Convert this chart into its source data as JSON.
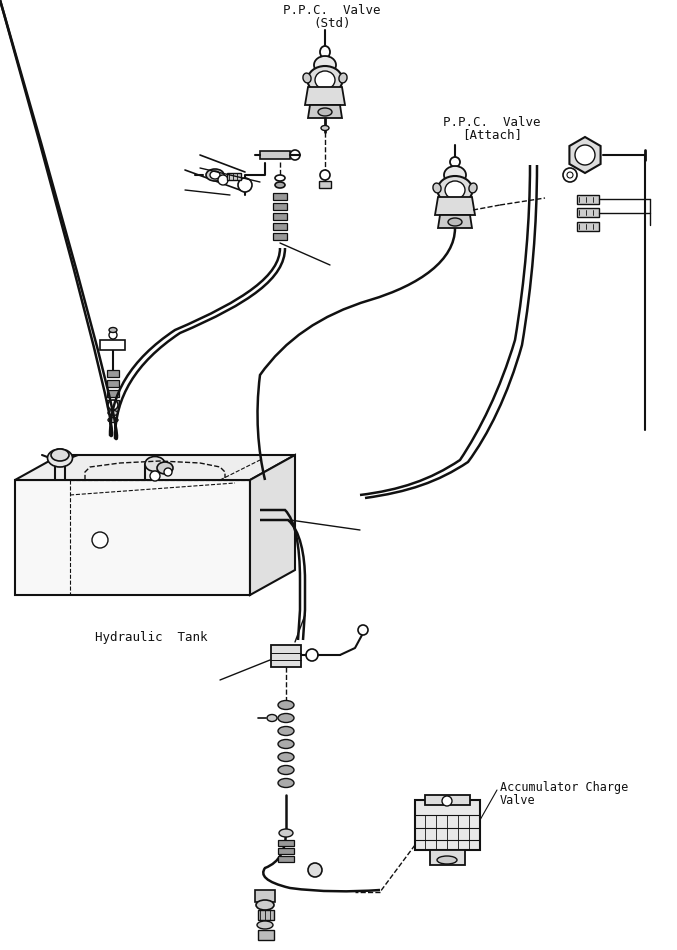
{
  "background_color": "#ffffff",
  "figsize": [
    6.77,
    9.5
  ],
  "dpi": 100,
  "labels": {
    "ppc_std_line1": "P.P.C.  Valve",
    "ppc_std_line2": "(Std)",
    "ppc_attach_line1": "P.P.C.  Valve",
    "ppc_attach_line2": "[Attach]",
    "hydraulic_tank": "Hydraulic  Tank",
    "accumulator_line1": "Accumulator Charge",
    "accumulator_line2": "Valve"
  }
}
